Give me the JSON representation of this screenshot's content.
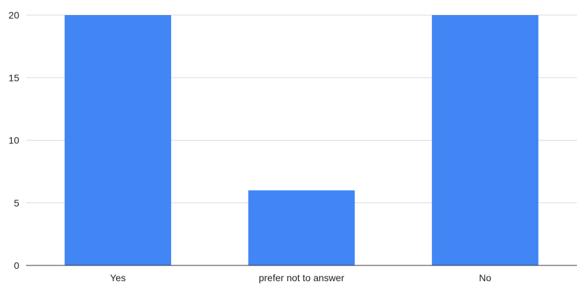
{
  "chart_data": {
    "type": "bar",
    "categories": [
      "Yes",
      "prefer not to answer",
      "No"
    ],
    "values": [
      20,
      6,
      20
    ],
    "title": "",
    "xlabel": "",
    "ylabel": "",
    "ylim": [
      0,
      20
    ],
    "yticks": [
      0,
      5,
      10,
      15,
      20
    ],
    "grid": true,
    "legend": "none",
    "bar_color": "#4285f4"
  }
}
